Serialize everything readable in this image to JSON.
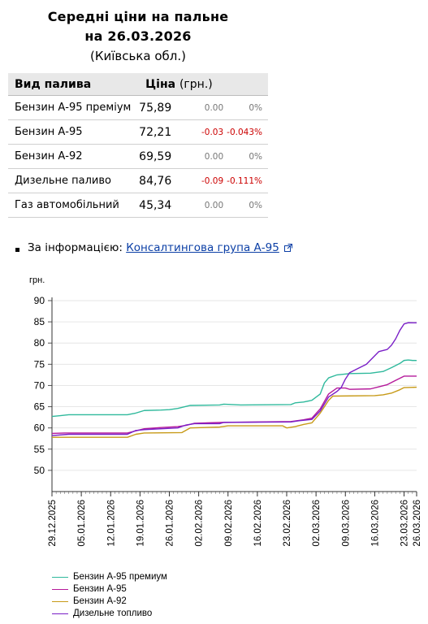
{
  "header": {
    "title_line1": "Середні ціни на пальне",
    "title_line2": "на 26.03.2026",
    "region": "(Київська обл.)"
  },
  "table": {
    "col_fuel": "Вид палива",
    "col_price": "Ціна",
    "col_unit": "(грн.)",
    "rows": [
      {
        "name": "Бензин А-95 преміум",
        "price": "75,89",
        "change": "0.00",
        "pct": "0%",
        "negative": false
      },
      {
        "name": "Бензин А-95",
        "price": "72,21",
        "change": "-0.03",
        "pct": "-0.043%",
        "negative": true
      },
      {
        "name": "Бензин А-92",
        "price": "69,59",
        "change": "0.00",
        "pct": "0%",
        "negative": false
      },
      {
        "name": "Дизельне паливо",
        "price": "84,76",
        "change": "-0.09",
        "pct": "-0.111%",
        "negative": true
      },
      {
        "name": "Газ автомобільний",
        "price": "45,34",
        "change": "0.00",
        "pct": "0%",
        "negative": false
      }
    ]
  },
  "source": {
    "label": "За інформацією:",
    "link_text": "Консалтингова група А-95"
  },
  "colors": {
    "premium": "#2fb99c",
    "a95": "#b5199a",
    "a92": "#c79a18",
    "diesel": "#7a1fc7",
    "negative": "#cc0000"
  },
  "chart_data": {
    "type": "line",
    "ylabel": "грн.",
    "ylim": [
      45,
      90
    ],
    "yticks": [
      "50",
      "55",
      "60",
      "65",
      "70",
      "75",
      "80",
      "85",
      "90"
    ],
    "x_start": "2025-12-29",
    "x_end": "2026-03-26",
    "xticks": [
      "29.12.2025",
      "05.01.2026",
      "12.01.2026",
      "19.01.2026",
      "26.01.2026",
      "02.02.2026",
      "09.02.2026",
      "16.02.2026",
      "23.02.2026",
      "02.03.2026",
      "09.03.2026",
      "16.03.2026",
      "23.03.2026",
      "26.03.2026"
    ],
    "series": [
      {
        "name": "Бензин А-95 премиум",
        "color_key": "premium",
        "points": [
          [
            "2025-12-29",
            62.7
          ],
          [
            "2025-12-31",
            62.9
          ],
          [
            "2026-01-02",
            63.1
          ],
          [
            "2026-01-16",
            63.1
          ],
          [
            "2026-01-18",
            63.5
          ],
          [
            "2026-01-20",
            64.1
          ],
          [
            "2026-01-24",
            64.2
          ],
          [
            "2026-01-26",
            64.3
          ],
          [
            "2026-01-28",
            64.6
          ],
          [
            "2026-01-31",
            65.3
          ],
          [
            "2026-02-07",
            65.4
          ],
          [
            "2026-02-08",
            65.6
          ],
          [
            "2026-02-12",
            65.4
          ],
          [
            "2026-02-24",
            65.5
          ],
          [
            "2026-02-25",
            65.9
          ],
          [
            "2026-02-27",
            66.1
          ],
          [
            "2026-03-01",
            66.5
          ],
          [
            "2026-03-03",
            68.0
          ],
          [
            "2026-03-04",
            70.6
          ],
          [
            "2026-03-05",
            71.8
          ],
          [
            "2026-03-07",
            72.5
          ],
          [
            "2026-03-10",
            72.8
          ],
          [
            "2026-03-15",
            72.9
          ],
          [
            "2026-03-18",
            73.3
          ],
          [
            "2026-03-20",
            74.2
          ],
          [
            "2026-03-22",
            75.2
          ],
          [
            "2026-03-23",
            75.9
          ],
          [
            "2026-03-24",
            76.0
          ],
          [
            "2026-03-25",
            75.9
          ],
          [
            "2026-03-26",
            75.89
          ]
        ]
      },
      {
        "name": "Бензин А-95",
        "color_key": "a95",
        "points": [
          [
            "2025-12-29",
            58.7
          ],
          [
            "2026-01-01",
            58.8
          ],
          [
            "2026-01-16",
            58.8
          ],
          [
            "2026-01-18",
            59.3
          ],
          [
            "2026-01-20",
            59.8
          ],
          [
            "2026-01-24",
            60.1
          ],
          [
            "2026-01-28",
            60.3
          ],
          [
            "2026-01-30",
            60.6
          ],
          [
            "2026-02-01",
            61.1
          ],
          [
            "2026-02-08",
            61.3
          ],
          [
            "2026-02-24",
            61.5
          ],
          [
            "2026-02-27",
            61.9
          ],
          [
            "2026-03-01",
            62.3
          ],
          [
            "2026-03-03",
            64.5
          ],
          [
            "2026-03-05",
            68.0
          ],
          [
            "2026-03-07",
            69.4
          ],
          [
            "2026-03-09",
            69.4
          ],
          [
            "2026-03-10",
            69.1
          ],
          [
            "2026-03-15",
            69.2
          ],
          [
            "2026-03-17",
            69.7
          ],
          [
            "2026-03-19",
            70.2
          ],
          [
            "2026-03-21",
            71.2
          ],
          [
            "2026-03-23",
            72.2
          ],
          [
            "2026-03-26",
            72.21
          ]
        ]
      },
      {
        "name": "Бензин А-92",
        "color_key": "a92",
        "points": [
          [
            "2025-12-29",
            57.8
          ],
          [
            "2026-01-16",
            57.8
          ],
          [
            "2026-01-18",
            58.5
          ],
          [
            "2026-01-20",
            58.8
          ],
          [
            "2026-01-29",
            58.9
          ],
          [
            "2026-01-31",
            60.0
          ],
          [
            "2026-02-07",
            60.2
          ],
          [
            "2026-02-09",
            60.5
          ],
          [
            "2026-02-22",
            60.5
          ],
          [
            "2026-02-23",
            60.0
          ],
          [
            "2026-02-25",
            60.3
          ],
          [
            "2026-02-27",
            60.8
          ],
          [
            "2026-03-01",
            61.2
          ],
          [
            "2026-03-03",
            63.5
          ],
          [
            "2026-03-05",
            66.5
          ],
          [
            "2026-03-06",
            67.5
          ],
          [
            "2026-03-16",
            67.6
          ],
          [
            "2026-03-18",
            67.8
          ],
          [
            "2026-03-20",
            68.2
          ],
          [
            "2026-03-22",
            69.0
          ],
          [
            "2026-03-23",
            69.5
          ],
          [
            "2026-03-26",
            69.59
          ]
        ]
      },
      {
        "name": "Дизельне топливо",
        "color_key": "diesel",
        "points": [
          [
            "2025-12-29",
            58.2
          ],
          [
            "2026-01-02",
            58.5
          ],
          [
            "2026-01-16",
            58.5
          ],
          [
            "2026-01-18",
            59.4
          ],
          [
            "2026-01-20",
            59.6
          ],
          [
            "2026-01-28",
            60.0
          ],
          [
            "2026-01-30",
            60.7
          ],
          [
            "2026-02-01",
            61.0
          ],
          [
            "2026-02-07",
            61.0
          ],
          [
            "2026-02-08",
            61.3
          ],
          [
            "2026-02-24",
            61.4
          ],
          [
            "2026-02-26",
            61.7
          ],
          [
            "2026-03-01",
            62.0
          ],
          [
            "2026-03-03",
            64.0
          ],
          [
            "2026-03-05",
            67.3
          ],
          [
            "2026-03-07",
            68.6
          ],
          [
            "2026-03-08",
            69.5
          ],
          [
            "2026-03-09",
            71.5
          ],
          [
            "2026-03-10",
            73.0
          ],
          [
            "2026-03-12",
            74.0
          ],
          [
            "2026-03-14",
            75.0
          ],
          [
            "2026-03-16",
            77.0
          ],
          [
            "2026-03-17",
            78.0
          ],
          [
            "2026-03-19",
            78.5
          ],
          [
            "2026-03-20",
            79.5
          ],
          [
            "2026-03-21",
            81.0
          ],
          [
            "2026-03-22",
            83.0
          ],
          [
            "2026-03-23",
            84.5
          ],
          [
            "2026-03-24",
            84.8
          ],
          [
            "2026-03-26",
            84.76
          ]
        ]
      }
    ]
  }
}
